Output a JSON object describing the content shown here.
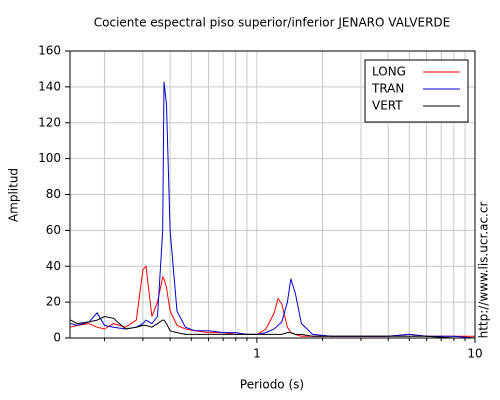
{
  "chart_data": {
    "type": "line",
    "title": "Cociente espectral piso superior/inferior  JENARO VALVERDE",
    "xlabel": "Periodo (s)",
    "ylabel": "Amplitud",
    "annotation": "http://www.lis.ucr.ac.cr",
    "x": [
      0.14,
      0.15,
      0.17,
      0.185,
      0.2,
      0.22,
      0.25,
      0.28,
      0.3,
      0.31,
      0.33,
      0.35,
      0.37,
      0.375,
      0.385,
      0.4,
      0.43,
      0.47,
      0.52,
      0.6,
      0.7,
      0.8,
      0.9,
      1.0,
      1.1,
      1.2,
      1.25,
      1.3,
      1.38,
      1.43,
      1.5,
      1.6,
      1.8,
      2.2,
      3,
      4,
      5,
      6,
      8,
      10
    ],
    "series": [
      {
        "name": "LONG",
        "color": "#ff0000",
        "values": [
          6,
          7,
          8,
          6,
          5,
          8,
          6,
          10,
          38,
          40,
          12,
          20,
          34,
          33,
          28,
          15,
          7,
          5,
          4,
          3,
          3,
          2,
          2,
          2,
          5,
          14,
          22,
          19,
          6,
          3,
          2,
          1,
          1,
          1,
          1,
          1,
          2,
          1,
          1,
          1
        ]
      },
      {
        "name": "TRAN",
        "color": "#0000cc",
        "values": [
          8,
          7,
          9,
          14,
          7,
          6,
          5,
          6,
          8,
          10,
          8,
          12,
          60,
          143,
          130,
          60,
          15,
          6,
          4,
          4,
          3,
          3,
          2,
          2,
          3,
          5,
          7,
          9,
          20,
          33,
          25,
          8,
          2,
          1,
          1,
          1,
          2,
          1,
          1,
          0
        ]
      },
      {
        "name": "VERT",
        "color": "#000000",
        "values": [
          10,
          8,
          9,
          10,
          12,
          11,
          5,
          6,
          7,
          7,
          6,
          8,
          10,
          10,
          8,
          4,
          3,
          2,
          2,
          2,
          2,
          2,
          2,
          2,
          2,
          2,
          2,
          2,
          3,
          3,
          2,
          2,
          1,
          1,
          1,
          1,
          1,
          1,
          0,
          0
        ]
      }
    ],
    "xscale": "log",
    "xlim": [
      0.139,
      10
    ],
    "xticks": [
      1,
      10
    ],
    "xminor": [
      0.2,
      0.3,
      0.4,
      0.5,
      0.6,
      0.7,
      0.8,
      0.9,
      2,
      3,
      4,
      5,
      6,
      7,
      8,
      9
    ],
    "ylim": [
      0,
      160
    ],
    "yticks": [
      0,
      20,
      40,
      60,
      80,
      100,
      120,
      140,
      160
    ],
    "grid": true,
    "legend": "upper right"
  }
}
